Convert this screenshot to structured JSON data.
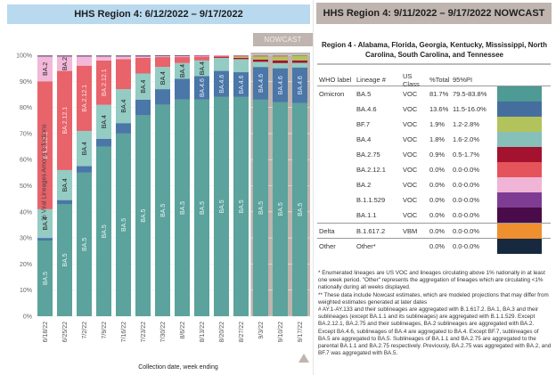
{
  "left_panel": {
    "title": "HHS Region 4: 6/12/2022 – 9/17/2022",
    "nowcast_label": "NOWCAST"
  },
  "right_panel": {
    "title": "HHS Region 4: 9/11/2022 – 9/17/2022 NOWCAST",
    "region_title": "Region 4 - Alabama, Florida, Georgia, Kentucky, Mississippi, North Carolina, South Carolina, and Tennessee",
    "table": {
      "headers": [
        "WHO label",
        "Lineage #",
        "US Class",
        "%Total",
        "95%PI"
      ],
      "rows": [
        {
          "who": "Omicron",
          "lineage": "BA.5",
          "class": "VOC",
          "total": "81.7%",
          "pi": "79.5-83.8%",
          "color": "#4e9a94"
        },
        {
          "who": "",
          "lineage": "BA.4.6",
          "class": "VOC",
          "total": "13.6%",
          "pi": "11.5-16.0%",
          "color": "#456e9f"
        },
        {
          "who": "",
          "lineage": "BF.7",
          "class": "VOC",
          "total": "1.9%",
          "pi": "1.2-2.8%",
          "color": "#b3c35c"
        },
        {
          "who": "",
          "lineage": "BA.4",
          "class": "VOC",
          "total": "1.8%",
          "pi": "1.6-2.0%",
          "color": "#86c0b8"
        },
        {
          "who": "",
          "lineage": "BA.2.75",
          "class": "VOC",
          "total": "0.9%",
          "pi": "0.5-1.7%",
          "color": "#a3122e"
        },
        {
          "who": "",
          "lineage": "BA.2.12.1",
          "class": "VOC",
          "total": "0.0%",
          "pi": "0.0-0.0%",
          "color": "#e5545a"
        },
        {
          "who": "",
          "lineage": "BA.2",
          "class": "VOC",
          "total": "0.0%",
          "pi": "0.0-0.0%",
          "color": "#f0b4d6"
        },
        {
          "who": "",
          "lineage": "B.1.1.529",
          "class": "VOC",
          "total": "0.0%",
          "pi": "0.0-0.0%",
          "color": "#7e3d93"
        },
        {
          "who": "",
          "lineage": "BA.1.1",
          "class": "VOC",
          "total": "0.0%",
          "pi": "0.0-0.0%",
          "color": "#4a0b4a"
        },
        {
          "who": "Delta",
          "lineage": "B.1.617.2",
          "class": "VBM",
          "total": "0.0%",
          "pi": "0.0-0.0%",
          "color": "#ee8f30",
          "sep": true
        },
        {
          "who": "Other",
          "lineage": "Other*",
          "class": "",
          "total": "0.0%",
          "pi": "0.0-0.0%",
          "color": "#16293f",
          "sep": true
        }
      ]
    },
    "footnotes": [
      "*      Enumerated lineages are US VOC and lineages circulating above 1% nationally in at least one week period. \"Other\" represents the aggregation of lineages which are circulating <1% nationally during all weeks displayed.",
      "**     These data include Nowcast estimates, which are modeled projections that may differ from weighted estimates generated at later dates",
      "#      AY.1-AY.133 and their sublineages are aggregated with B.1.617.2. BA.1, BA.3 and their sublineages (except BA.1.1 and its sublineages) are aggregated with B.1.1.529. Except BA.2.12.1, BA.2.75 and their sublineages, BA.2 sublineages are aggregated with BA.2. Except BA.4.6, sublineages of BA.4 are aggregated to BA.4. Except BF.7, sublineages of BA.5 are aggregated to BA.5. Sublineages of BA.1.1 and BA.2.75 are aggregated to the parental BA.1.1 and BA.2.75 respectively. Previously, BA.2.75 was aggregated with BA.2, and BF.7 was aggregated with BA.5."
    ]
  },
  "chart_data": {
    "type": "bar",
    "stacked": true,
    "title": "HHS Region 4: 6/12/2022 – 9/17/2022",
    "xlabel": "Collection date, week ending",
    "ylabel": "% Viral Lineages Among Infections",
    "ylim": [
      0,
      100
    ],
    "yticks": [
      "0%",
      "10%",
      "20%",
      "30%",
      "40%",
      "50%",
      "60%",
      "70%",
      "80%",
      "90%",
      "100%"
    ],
    "grid": true,
    "nowcast_from_index": 11,
    "categories": [
      "6/18/22",
      "6/25/22",
      "7/2/22",
      "7/9/22",
      "7/16/22",
      "7/23/22",
      "7/30/22",
      "8/6/22",
      "8/13/22",
      "8/20/22",
      "8/27/22",
      "9/3/22",
      "9/10/22",
      "9/17/22"
    ],
    "series": [
      {
        "name": "BA.5",
        "color": "#5ba39c",
        "label_color": "#e8f4f2",
        "values": [
          29,
          43,
          55,
          65,
          70,
          77,
          81,
          83,
          83,
          84,
          84,
          83,
          82,
          81.7
        ]
      },
      {
        "name": "BA.4.6",
        "color": "#4a76a8",
        "label_color": "#e6edf6",
        "values": [
          1,
          1.5,
          2.5,
          3,
          4,
          6,
          6,
          8,
          9,
          10,
          9.5,
          12.5,
          13,
          13.6
        ]
      },
      {
        "name": "BA.4",
        "color": "#94cbc3",
        "label_color": "#1e1e1e",
        "values": [
          11,
          11.5,
          13.5,
          13,
          13,
          10,
          8.5,
          6,
          6,
          5,
          5,
          2,
          2,
          1.8
        ]
      },
      {
        "name": "BA.2.75",
        "color": "#a3122e",
        "label_color": "#ffffff",
        "values": [
          0,
          0,
          0,
          0,
          0,
          0,
          0,
          0,
          0,
          0.3,
          0.5,
          0.8,
          1,
          0.9
        ]
      },
      {
        "name": "BF.7",
        "color": "#b3c35c",
        "label_color": "#1e1e1e",
        "values": [
          0,
          0,
          0,
          0,
          0,
          0,
          0,
          0,
          0,
          0,
          0.4,
          1.2,
          1.5,
          1.9
        ]
      },
      {
        "name": "BA.2.12.1",
        "color": "#e8636a",
        "label_color": "#fbe4e5",
        "values": [
          49,
          38,
          25,
          17,
          11.5,
          6,
          3.8,
          2.3,
          1.5,
          0.5,
          0.4,
          0.3,
          0.3,
          0
        ]
      },
      {
        "name": "BA.2",
        "color": "#f2b8d8",
        "label_color": "#1e1e1e",
        "values": [
          9.5,
          5.5,
          3.5,
          1.5,
          1,
          0.5,
          0.3,
          0.3,
          0.3,
          0.2,
          0.1,
          0.1,
          0.1,
          0
        ]
      },
      {
        "name": "B.1.1.529",
        "color": "#7e3d93",
        "label_color": "#ffffff",
        "values": [
          0.2,
          0.2,
          0.2,
          0.2,
          0.2,
          0.3,
          0.3,
          0.3,
          0.2,
          0,
          0,
          0,
          0,
          0
        ]
      },
      {
        "name": "Other",
        "color": "#7a7a7a",
        "label_color": "#ffffff",
        "values": [
          0.3,
          0.3,
          0.3,
          0.3,
          0.3,
          0.2,
          0.1,
          0.1,
          0,
          0,
          0.1,
          0.1,
          0.1,
          0.1
        ]
      }
    ],
    "bar_labels": [
      {
        "bar": 0,
        "series": "BA.5",
        "text": "BA.5"
      },
      {
        "bar": 0,
        "series": "BA.4",
        "text": "BA.4"
      },
      {
        "bar": 0,
        "series": "BA.2.12.1",
        "text": "BA.2.12.1"
      },
      {
        "bar": 0,
        "series": "BA.2",
        "text": "BA.2"
      },
      {
        "bar": 1,
        "series": "BA.5",
        "text": "BA.5"
      },
      {
        "bar": 1,
        "series": "BA.4",
        "text": "BA.4"
      },
      {
        "bar": 1,
        "series": "BA.2.12.1",
        "text": "BA.2.12.1"
      },
      {
        "bar": 1,
        "series": "BA.2",
        "text": "BA.2"
      },
      {
        "bar": 2,
        "series": "BA.5",
        "text": "BA.5"
      },
      {
        "bar": 2,
        "series": "BA.4",
        "text": "BA.4"
      },
      {
        "bar": 2,
        "series": "BA.2.12.1",
        "text": "BA.2.12.1"
      },
      {
        "bar": 3,
        "series": "BA.5",
        "text": "BA.5"
      },
      {
        "bar": 3,
        "series": "BA.4",
        "text": "BA.4"
      },
      {
        "bar": 3,
        "series": "BA.2.12.1",
        "text": "BA.2.12.1"
      },
      {
        "bar": 4,
        "series": "BA.5",
        "text": "BA.5"
      },
      {
        "bar": 4,
        "series": "BA.4",
        "text": "BA.4"
      },
      {
        "bar": 5,
        "series": "BA.5",
        "text": "BA.5"
      },
      {
        "bar": 5,
        "series": "BA.4",
        "text": "BA.4"
      },
      {
        "bar": 6,
        "series": "BA.5",
        "text": "BA.5"
      },
      {
        "bar": 6,
        "series": "BA.4",
        "text": "BA.4"
      },
      {
        "bar": 7,
        "series": "BA.5",
        "text": "BA.5"
      },
      {
        "bar": 7,
        "series": "BA.4",
        "text": "BA.4"
      },
      {
        "bar": 8,
        "series": "BA.5",
        "text": "BA.5"
      },
      {
        "bar": 8,
        "series": "BA.4.6",
        "text": "BA.4.6"
      },
      {
        "bar": 8,
        "series": "BA.4",
        "text": "BA.4"
      },
      {
        "bar": 9,
        "series": "BA.5",
        "text": "BA.5"
      },
      {
        "bar": 9,
        "series": "BA.4.6",
        "text": "BA.4.6"
      },
      {
        "bar": 10,
        "series": "BA.5",
        "text": "BA.5"
      },
      {
        "bar": 10,
        "series": "BA.4.6",
        "text": "BA.4.6"
      },
      {
        "bar": 11,
        "series": "BA.5",
        "text": "BA.5"
      },
      {
        "bar": 11,
        "series": "BA.4.6",
        "text": "BA.4.6"
      },
      {
        "bar": 12,
        "series": "BA.5",
        "text": "BA.5"
      },
      {
        "bar": 12,
        "series": "BA.4.6",
        "text": "BA.4.6"
      },
      {
        "bar": 13,
        "series": "BA.5",
        "text": "BA.5"
      },
      {
        "bar": 13,
        "series": "BA.4.6",
        "text": "BA.4.6"
      }
    ]
  }
}
